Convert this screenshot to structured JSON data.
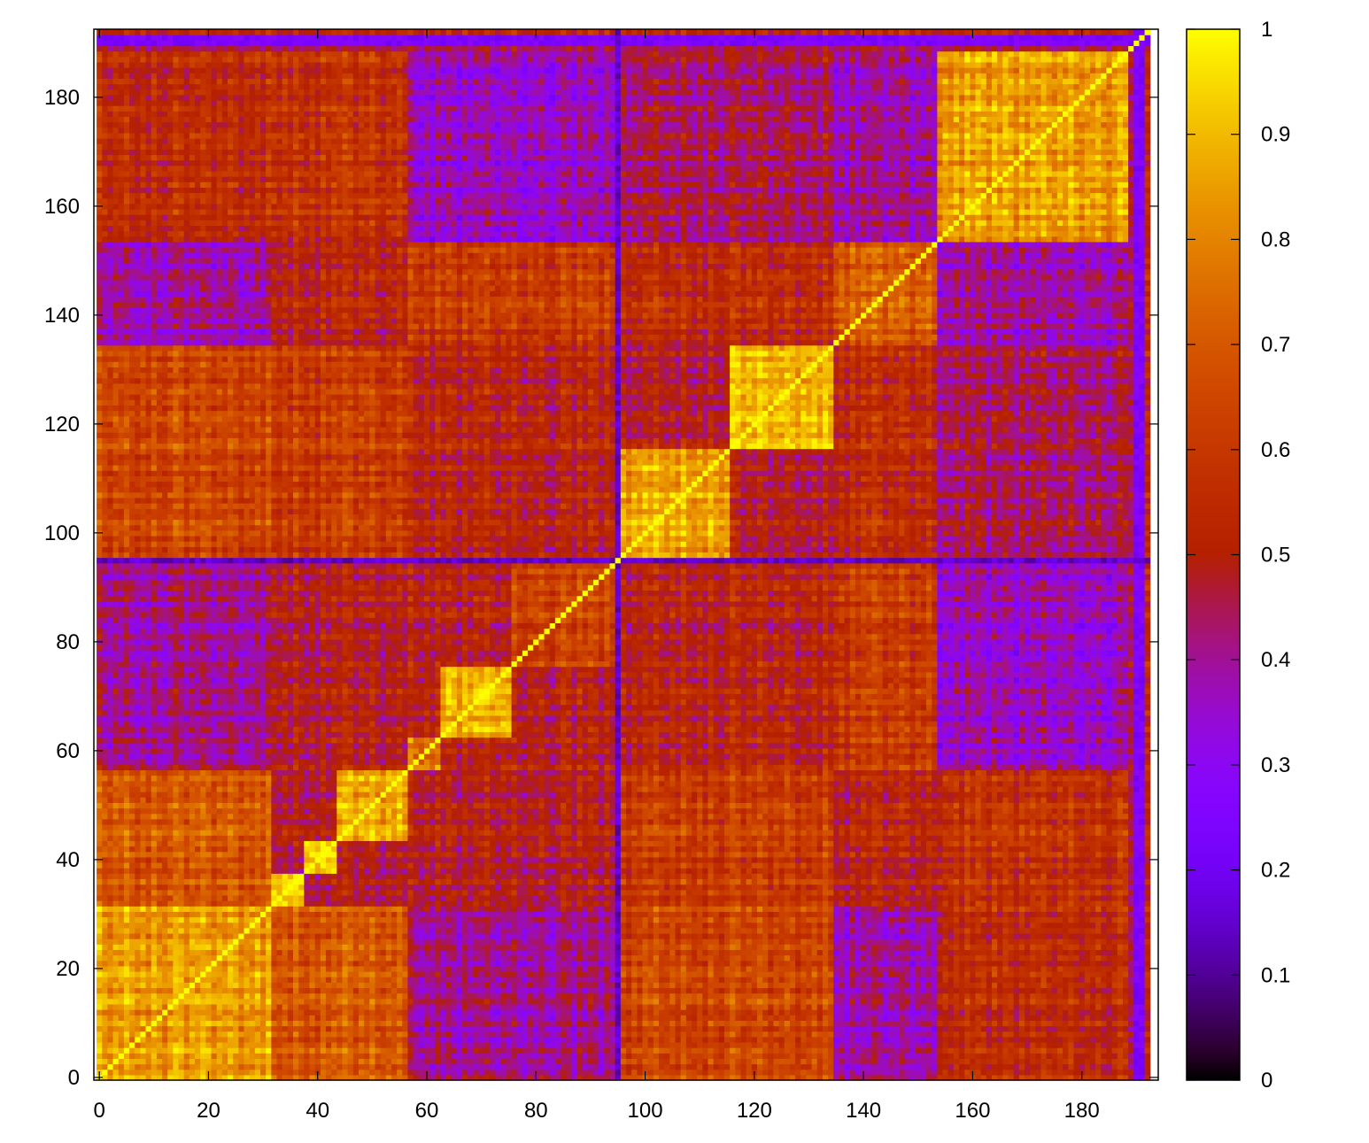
{
  "chart_data": {
    "type": "heatmap",
    "title": "",
    "xlabel": "",
    "ylabel": "",
    "matrix_size": 193,
    "xlim": [
      -1,
      194
    ],
    "ylim": [
      -0.5,
      192.5
    ],
    "x_ticks": [
      0,
      20,
      40,
      60,
      80,
      100,
      120,
      140,
      160,
      180
    ],
    "y_ticks": [
      0,
      20,
      40,
      60,
      80,
      100,
      120,
      140,
      160,
      180
    ],
    "x_tick_labels": [
      "0",
      "20",
      "40",
      "60",
      "80",
      "100",
      "120",
      "140",
      "160",
      "180"
    ],
    "y_tick_labels": [
      "0",
      "20",
      "40",
      "60",
      "80",
      "100",
      "120",
      "140",
      "160",
      "180"
    ],
    "colorbar": {
      "range": [
        0,
        1
      ],
      "ticks": [
        0,
        0.1,
        0.2,
        0.3,
        0.4,
        0.5,
        0.6,
        0.7,
        0.8,
        0.9,
        1
      ],
      "tick_labels": [
        "0",
        "0.1",
        "0.2",
        "0.3",
        "0.4",
        "0.5",
        "0.6",
        "0.7",
        "0.8",
        "0.9",
        "1"
      ],
      "colormap": "gnuplot-pm3d-7-5-15 (black-purple-red-orange-yellow)"
    },
    "diagonal_value": 1.0,
    "grid": false,
    "approx_blocks": [
      {
        "range": [
          0,
          31
        ],
        "value": 0.85
      },
      {
        "range": [
          32,
          37
        ],
        "value": 0.95
      },
      {
        "range": [
          38,
          43
        ],
        "value": 0.97
      },
      {
        "range": [
          44,
          56
        ],
        "value": 0.88
      },
      {
        "range": [
          57,
          62
        ],
        "value": 0.75
      },
      {
        "range": [
          63,
          75
        ],
        "value": 0.88
      },
      {
        "range": [
          76,
          94
        ],
        "value": 0.62
      },
      {
        "range": [
          96,
          115
        ],
        "value": 0.88
      },
      {
        "range": [
          116,
          134
        ],
        "value": 0.9
      },
      {
        "range": [
          135,
          153
        ],
        "value": 0.7
      },
      {
        "range": [
          154,
          188
        ],
        "value": 0.85
      }
    ],
    "approx_off_block_pairs": [
      {
        "a": [
          0,
          31
        ],
        "b": [
          32,
          56
        ],
        "value": 0.7
      },
      {
        "a": [
          0,
          31
        ],
        "b": [
          57,
          94
        ],
        "value": 0.4
      },
      {
        "a": [
          0,
          31
        ],
        "b": [
          96,
          134
        ],
        "value": 0.65
      },
      {
        "a": [
          0,
          31
        ],
        "b": [
          135,
          153
        ],
        "value": 0.38
      },
      {
        "a": [
          0,
          31
        ],
        "b": [
          154,
          188
        ],
        "value": 0.55
      },
      {
        "a": [
          32,
          56
        ],
        "b": [
          57,
          94
        ],
        "value": 0.5
      },
      {
        "a": [
          32,
          56
        ],
        "b": [
          96,
          134
        ],
        "value": 0.62
      },
      {
        "a": [
          32,
          56
        ],
        "b": [
          135,
          153
        ],
        "value": 0.52
      },
      {
        "a": [
          32,
          56
        ],
        "b": [
          154,
          188
        ],
        "value": 0.58
      },
      {
        "a": [
          57,
          94
        ],
        "b": [
          96,
          134
        ],
        "value": 0.52
      },
      {
        "a": [
          57,
          94
        ],
        "b": [
          135,
          153
        ],
        "value": 0.6
      },
      {
        "a": [
          57,
          94
        ],
        "b": [
          154,
          188
        ],
        "value": 0.35
      },
      {
        "a": [
          96,
          134
        ],
        "b": [
          135,
          153
        ],
        "value": 0.55
      },
      {
        "a": [
          96,
          134
        ],
        "b": [
          154,
          188
        ],
        "value": 0.45
      },
      {
        "a": [
          135,
          153
        ],
        "b": [
          154,
          188
        ],
        "value": 0.38
      }
    ],
    "low_similarity_lines": [
      {
        "index": 95,
        "value": 0.15
      },
      {
        "index": 190,
        "value": 0.25
      },
      {
        "index": 191,
        "value": 0.25
      }
    ]
  }
}
